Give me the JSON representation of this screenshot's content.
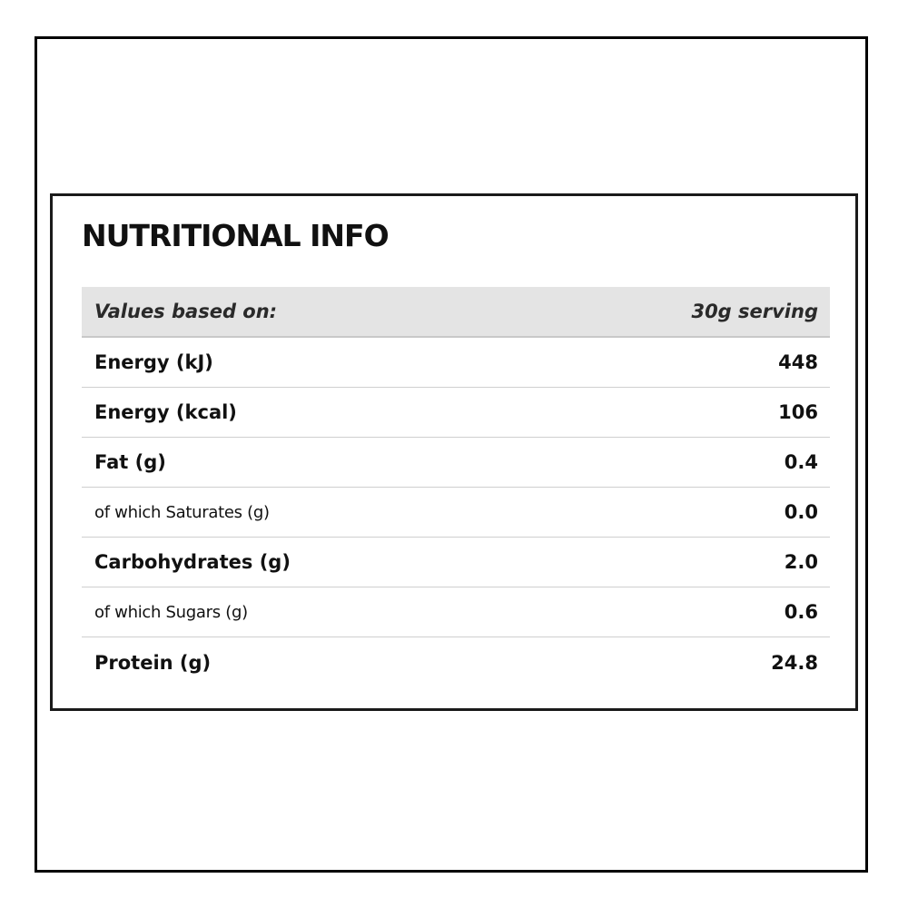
{
  "title": "NUTRITIONAL INFO",
  "table": {
    "header": {
      "label": "Values based on:",
      "value": "30g serving"
    },
    "rows": [
      {
        "label": "Energy (kJ)",
        "value": "448"
      },
      {
        "label": "Energy (kcal)",
        "value": "106"
      },
      {
        "label": "Fat (g)",
        "value": "0.4"
      },
      {
        "label": "of which Saturates (g)",
        "value": "0.0"
      },
      {
        "label": "Carbohydrates (g)",
        "value": "2.0"
      },
      {
        "label": "of which Sugars (g)",
        "value": "0.6"
      },
      {
        "label": "Protein (g)",
        "value": "24.8"
      }
    ]
  },
  "colors": {
    "header_background": "#e4e4e4",
    "text": "#111111",
    "border": "#000000",
    "row_divider": "#cfcfcf"
  }
}
